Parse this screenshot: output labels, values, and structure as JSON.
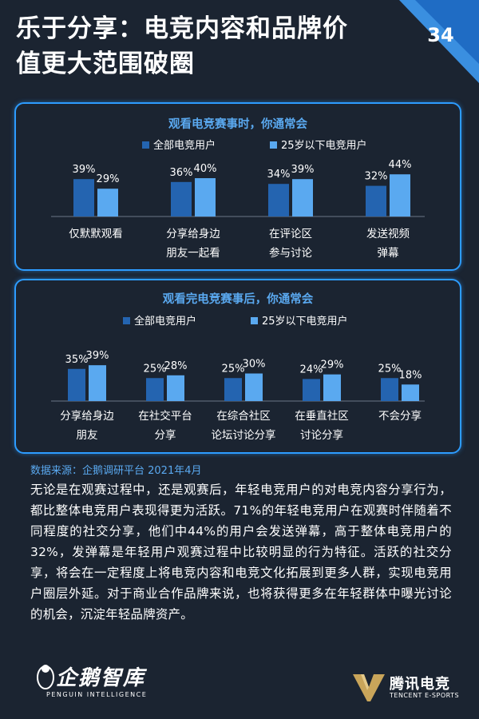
{
  "header": {
    "title_line1": "乐于分享：电竞内容和品牌价",
    "title_line2": "值更大范围破圈",
    "page_number": "34"
  },
  "colors": {
    "background": "#1b2431",
    "panel_border": "#2d9cff",
    "series_all": "#2464b0",
    "series_young": "#5aa9f0",
    "panel_title": "#5aa9f0",
    "source_text": "#5aa9f0"
  },
  "chart_data": [
    {
      "type": "bar",
      "title": "观看电竞赛事时，你通常会",
      "categories": [
        [
          "仅默默观看"
        ],
        [
          "分享给身边",
          "朋友一起看"
        ],
        [
          "在评论区",
          "参与讨论"
        ],
        [
          "发送视频",
          "弹幕"
        ]
      ],
      "series": [
        {
          "name": "全部电竞用户",
          "values": [
            39,
            36,
            34,
            32
          ]
        },
        {
          "name": "25岁以下电竞用户",
          "values": [
            29,
            40,
            39,
            44
          ]
        }
      ],
      "ylim": [
        0,
        100
      ]
    },
    {
      "type": "bar",
      "title": "观看完电竞赛事后，你通常会",
      "categories": [
        [
          "分享给身边",
          "朋友"
        ],
        [
          "在社交平台",
          "分享"
        ],
        [
          "在综合社区",
          "论坛讨论分享"
        ],
        [
          "在垂直社区",
          "讨论分享"
        ],
        [
          "不会分享"
        ]
      ],
      "series": [
        {
          "name": "全部电竞用户",
          "values": [
            35,
            25,
            25,
            24,
            25
          ]
        },
        {
          "name": "25岁以下电竞用户",
          "values": [
            39,
            28,
            30,
            29,
            18
          ]
        }
      ],
      "ylim": [
        0,
        100
      ]
    }
  ],
  "source": "数据来源：企鹅调研平台 2021年4月",
  "body_text": "无论是在观赛过程中，还是观赛后，年轻电竞用户的对电竞内容分享行为，都比整体电竞用户表现得更为活跃。71%的年轻电竞用户在观赛时伴随着不同程度的社交分享，他们中44%的用户会发送弹幕，高于整体电竞用户的32%，发弹幕是年轻用户观赛过程中比较明显的行为特征。活跃的社交分享，将会在一定程度上将电竞内容和电竞文化拓展到更多人群，实现电竞用户圈层外延。对于商业合作品牌来说，也将获得更多在年轻群体中曝光讨论的机会，沉淀年轻品牌资产。",
  "footer": {
    "left_brand": "企鹅智库",
    "left_sub": "PENGUIN INTELLIGENCE",
    "right_brand": "腾讯电竞",
    "right_sub": "TENCENT E-SPORTS"
  }
}
